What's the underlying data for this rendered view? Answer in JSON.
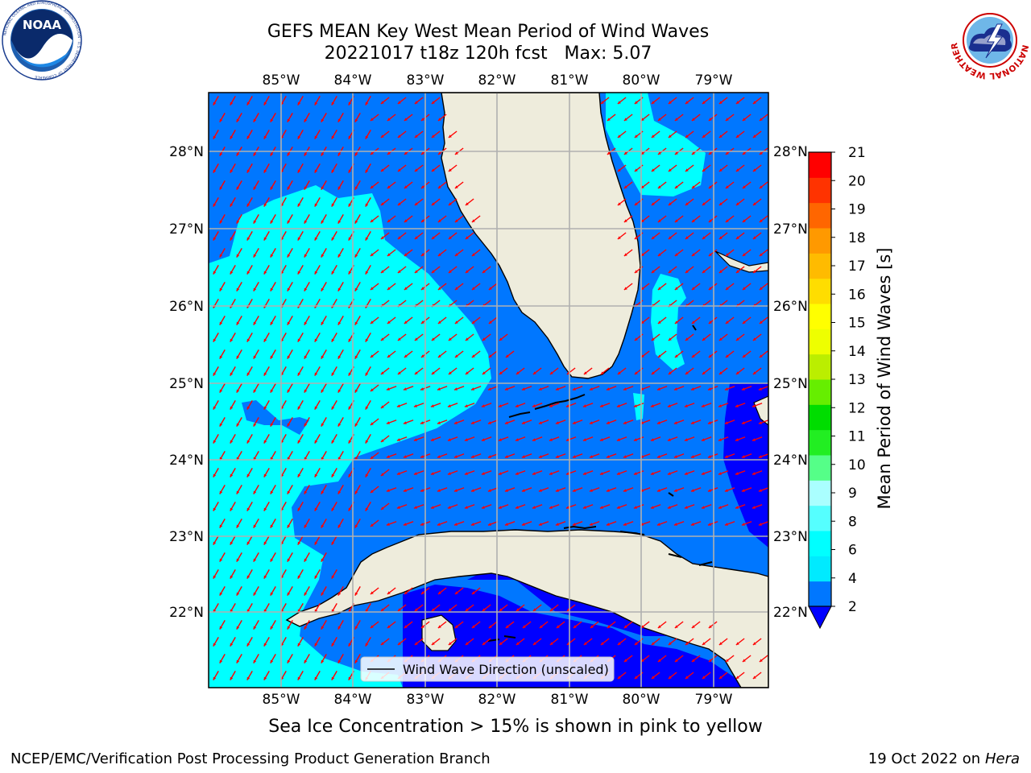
{
  "header": {
    "title_line1": "GEFS MEAN Key West Mean Period of Wind Waves",
    "title_line2": "20221017 t18z 120h fcst   Max: 5.07"
  },
  "logos": {
    "noaa_text": "NOAA",
    "noaa_ring_text": "NATIONAL OCEANIC AND ATMOSPHERIC ADMINISTRATION · U.S. DEPARTMENT OF COMMERCE",
    "nws_ring_text": "NATIONAL WEATHER SERVICE"
  },
  "map": {
    "lon_labels": [
      "85°W",
      "84°W",
      "83°W",
      "82°W",
      "81°W",
      "80°W",
      "79°W"
    ],
    "lat_labels": [
      "28°N",
      "27°N",
      "26°N",
      "25°N",
      "24°N",
      "23°N",
      "22°N"
    ],
    "legend_label": "Wind Wave Direction (unscaled)",
    "arrow_color": "#ff0000",
    "land_color": "#eeecdc",
    "grid_color": "#b0b0b0"
  },
  "colorbar": {
    "label": "Mean Period of Wind Waves [s]",
    "tick_labels": [
      "2",
      "4",
      "6",
      "8",
      "9",
      "10",
      "11",
      "12",
      "13",
      "14",
      "15",
      "16",
      "17",
      "18",
      "19",
      "20",
      "21"
    ],
    "colors": [
      "#0077ff",
      "#00eaff",
      "#00ffff",
      "#55ffff",
      "#aaffff",
      "#55ff88",
      "#22ee22",
      "#00dd00",
      "#66ee00",
      "#bbee00",
      "#eeff00",
      "#ffff00",
      "#ffdd00",
      "#ffbb00",
      "#ff9900",
      "#ff6600",
      "#ff3300",
      "#ff0000"
    ],
    "under_color": "#0000ff"
  },
  "footer": {
    "note": "Sea Ice Concentration > 15% is shown in pink to yellow",
    "left": "NCEP/EMC/Verification Post Processing Product Generation Branch",
    "right_date": "19 Oct 2022 on",
    "right_host": "Hera"
  }
}
